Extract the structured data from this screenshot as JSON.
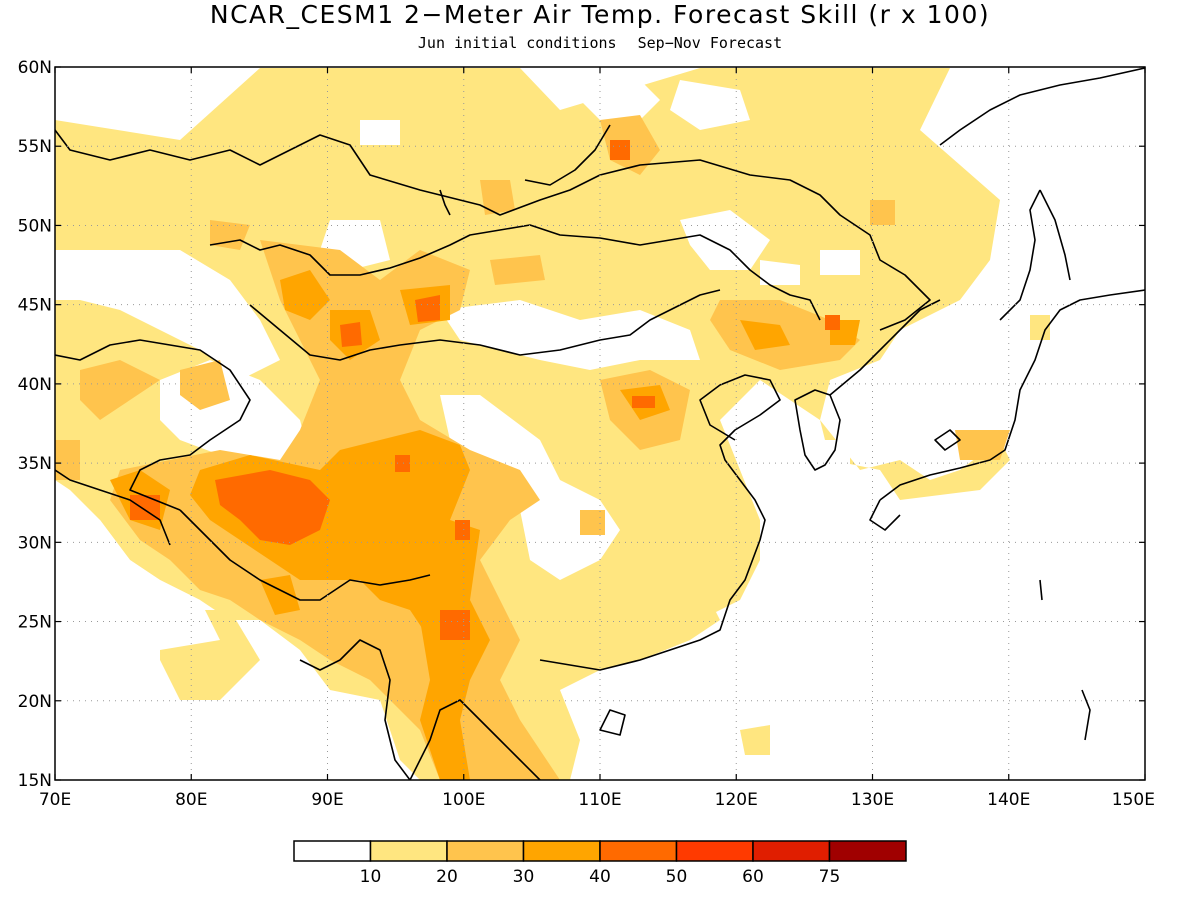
{
  "header": {
    "title": "NCAR_CESM1 2−Meter Air Temp. Forecast Skill (r x 100)",
    "init_conditions": "Jun initial conditions",
    "forecast_period": "Sep−Nov Forecast"
  },
  "map": {
    "lon_range": [
      70,
      150
    ],
    "lat_range": [
      15,
      60
    ],
    "lon_ticks": [
      "70E",
      "80E",
      "90E",
      "100E",
      "110E",
      "120E",
      "130E",
      "140E",
      "150E"
    ],
    "lat_ticks": [
      "15N",
      "20N",
      "25N",
      "30N",
      "35N",
      "40N",
      "45N",
      "50N",
      "55N",
      "60N"
    ],
    "grid": "dotted"
  },
  "colorbar": {
    "colors": [
      "#ffffff",
      "#ffe680",
      "#ffc44d",
      "#ffa500",
      "#ff6a00",
      "#ff3a00",
      "#e01e00",
      "#a00000"
    ],
    "labels": [
      "10",
      "20",
      "30",
      "40",
      "50",
      "60",
      "75"
    ]
  }
}
